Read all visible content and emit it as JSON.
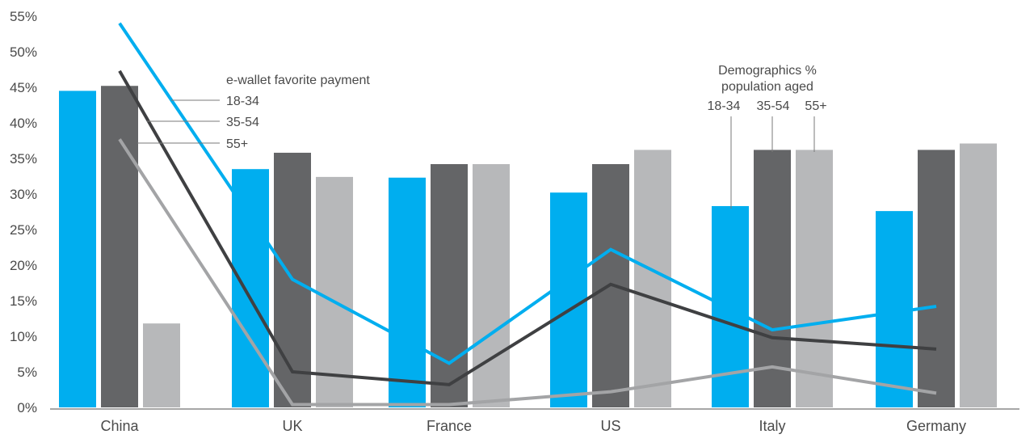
{
  "chart_data": {
    "type": "bar",
    "categories": [
      "China",
      "UK",
      "France",
      "US",
      "Italy",
      "Germany"
    ],
    "y_ticks": [
      "0%",
      "5%",
      "10%",
      "15%",
      "20%",
      "25%",
      "30%",
      "35%",
      "40%",
      "45%",
      "50%",
      "55%"
    ],
    "ylim": [
      0,
      55
    ],
    "grid": false,
    "bar_series": [
      {
        "name": "18-34",
        "color": "#00aeef",
        "values": [
          44.5,
          33.5,
          32.3,
          30.2,
          28.3,
          27.6
        ]
      },
      {
        "name": "35-54",
        "color": "#646567",
        "values": [
          45.2,
          35.8,
          34.2,
          34.2,
          36.2,
          36.2
        ]
      },
      {
        "name": "55+",
        "color": "#b7b8ba",
        "values": [
          11.8,
          32.4,
          34.2,
          36.2,
          36.2,
          37.1
        ]
      }
    ],
    "line_series": [
      {
        "name": "18-34",
        "color": "#00aeef",
        "values": [
          54,
          18,
          6.2,
          22.2,
          10.9,
          14.2
        ]
      },
      {
        "name": "35-54",
        "color": "#3f4042",
        "values": [
          47.3,
          5,
          3.2,
          17.3,
          9.8,
          8.2
        ]
      },
      {
        "name": "55+",
        "color": "#a3a4a6",
        "values": [
          37.7,
          0.4,
          0.4,
          2.2,
          5.7,
          2
        ]
      }
    ],
    "line_legend": {
      "title": "e-wallet favorite payment",
      "labels": [
        "18-34",
        "35-54",
        "55+"
      ]
    },
    "bar_legend": {
      "title_line1": "Demographics %",
      "title_line2": "population aged",
      "labels": [
        "18-34",
        "35-54",
        "55+"
      ]
    }
  }
}
